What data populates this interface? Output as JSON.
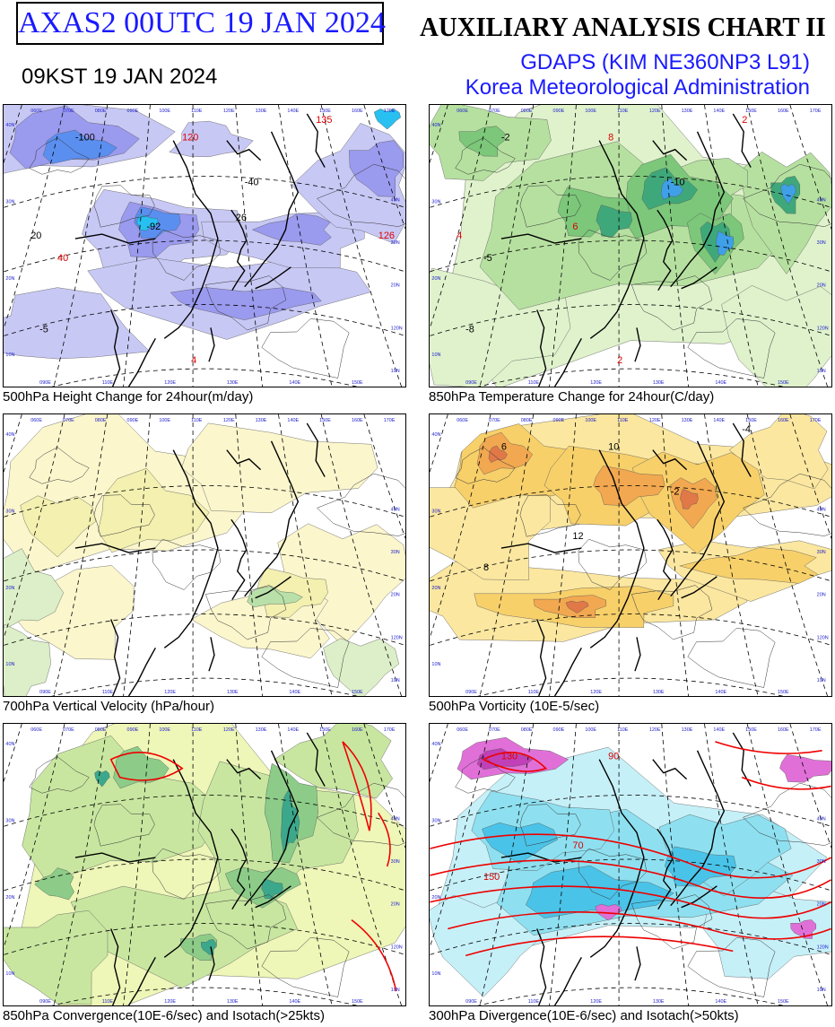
{
  "header": {
    "chart_code": "AXAS2  00UTC 19 JAN 2024",
    "title": "AUXILIARY ANALYSIS CHART II",
    "local_time": "09KST 19 JAN 2024",
    "model": "GDAPS (KIM NE360NP3 L91)",
    "agency": "Korea Meteorological Administration"
  },
  "map": {
    "lon_labels": [
      "060E",
      "070E",
      "080E",
      "090E",
      "100E",
      "110E",
      "120E",
      "130E",
      "140E",
      "150E",
      "160E",
      "170E"
    ],
    "bottom_lon_labels": [
      "090E",
      "110E",
      "120E",
      "130E",
      "140E",
      "150E"
    ],
    "lat_labels": [
      "40N",
      "30N",
      "20N",
      "10N"
    ],
    "right_lat_labels": [
      "40N",
      "30N",
      "20N",
      "120N",
      "10N"
    ]
  },
  "panels": [
    {
      "caption": "500hPa Height Change for 24hour(m/day)",
      "style": "height",
      "fill_colors": [
        "#c8c8f5",
        "#9a9aee",
        "#5a8ff0",
        "#28c0f0"
      ],
      "labels": [
        {
          "text": "-100",
          "color": "#000"
        },
        {
          "text": "120",
          "color": "#d00"
        },
        {
          "text": "-92",
          "color": "#000"
        },
        {
          "text": "40",
          "color": "#d00"
        },
        {
          "text": "-40",
          "color": "#000"
        },
        {
          "text": "135",
          "color": "#d00"
        },
        {
          "text": "20",
          "color": "#000"
        },
        {
          "text": "-5",
          "color": "#000"
        },
        {
          "text": "4",
          "color": "#d00"
        },
        {
          "text": "26",
          "color": "#000"
        },
        {
          "text": "126",
          "color": "#d00"
        }
      ]
    },
    {
      "caption": "850hPa Temperature Change for 24hour(C/day)",
      "style": "temperature",
      "fill_colors": [
        "#dff2cc",
        "#b6e0a0",
        "#7cc77a",
        "#3fa87a",
        "#3fa0e8"
      ],
      "labels": [
        {
          "text": "-2",
          "color": "#000"
        },
        {
          "text": "8",
          "color": "#d00"
        },
        {
          "text": "6",
          "color": "#d00"
        },
        {
          "text": "-5",
          "color": "#000"
        },
        {
          "text": "-10",
          "color": "#000"
        },
        {
          "text": "2",
          "color": "#d00"
        },
        {
          "text": "4",
          "color": "#d00"
        },
        {
          "text": "-8",
          "color": "#000"
        },
        {
          "text": "2",
          "color": "#d00"
        }
      ]
    },
    {
      "caption": "700hPa Vertical Velocity (hPa/hour)",
      "style": "velocity",
      "fill_colors": [
        "#fbf6cc",
        "#f3f0b0",
        "#dcefc8",
        "#b8e0a8"
      ],
      "labels": []
    },
    {
      "caption": "500hPa Vorticity (10E-5/sec)",
      "style": "vorticity",
      "fill_colors": [
        "#fbe7a0",
        "#f7d06a",
        "#f2a850",
        "#e07848"
      ],
      "labels": [
        {
          "text": "6",
          "color": "#000"
        },
        {
          "text": "10",
          "color": "#000"
        },
        {
          "text": "12",
          "color": "#000"
        },
        {
          "text": "8",
          "color": "#000"
        },
        {
          "text": "-2",
          "color": "#000"
        },
        {
          "text": "-4",
          "color": "#000"
        }
      ]
    },
    {
      "caption": "850hPa Convergence(10E-6/sec) and Isotach(>25kts)",
      "style": "convergence",
      "fill_colors": [
        "#eef6b8",
        "#c8e6a0",
        "#8ccc88",
        "#3ba88c",
        "#2a7fb0"
      ],
      "labels": []
    },
    {
      "caption": "300hPa Divergence(10E-6/sec) and Isotach(>50kts)",
      "style": "divergence",
      "fill_colors": [
        "#c6f0f8",
        "#8ee0f0",
        "#4ac3e8",
        "#e070d8",
        "#c040b8"
      ],
      "labels": [
        {
          "text": "130",
          "color": "#d00"
        },
        {
          "text": "90",
          "color": "#d00"
        },
        {
          "text": "70",
          "color": "#d00"
        },
        {
          "text": "150",
          "color": "#d00"
        }
      ]
    }
  ]
}
